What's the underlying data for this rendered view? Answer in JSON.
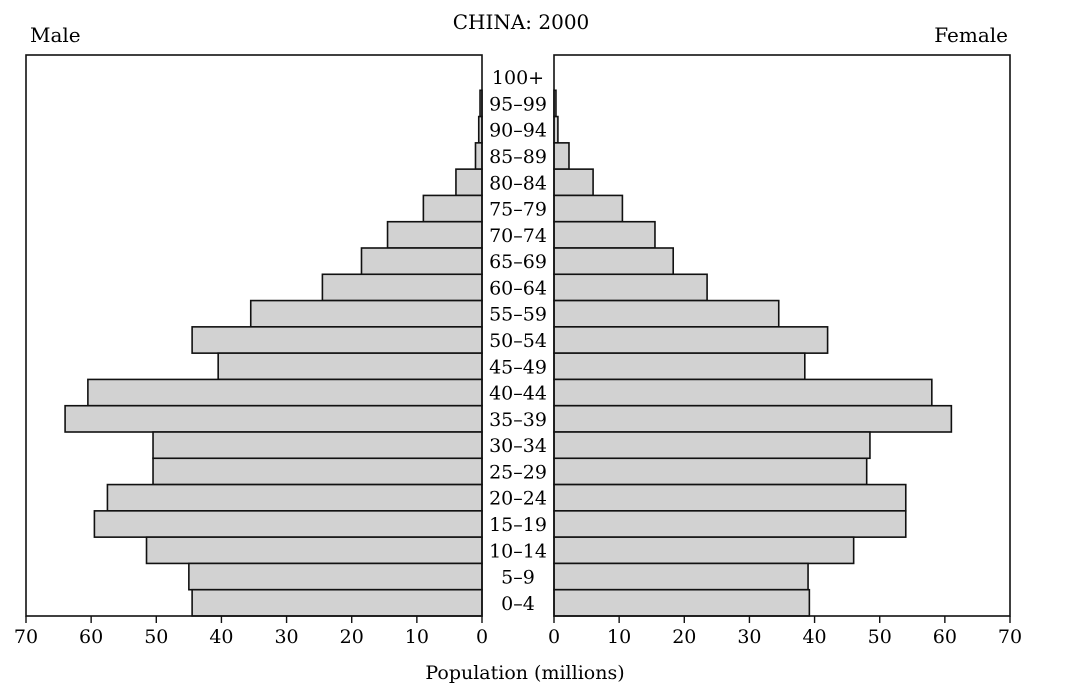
{
  "chart_data": {
    "type": "bar",
    "title": "CHINA: 2000",
    "left_label": "Male",
    "right_label": "Female",
    "xlabel": "Population (millions)",
    "xlim": [
      0,
      70
    ],
    "x_ticks": [
      "70",
      "60",
      "50",
      "40",
      "30",
      "20",
      "10",
      "0",
      "0",
      "10",
      "20",
      "30",
      "40",
      "50",
      "60",
      "70"
    ],
    "categories": [
      "100+",
      "95–99",
      "90–94",
      "85–89",
      "80–84",
      "75–79",
      "70–74",
      "65–69",
      "60–64",
      "55–59",
      "50–54",
      "45–49",
      "40–44",
      "35–39",
      "30–34",
      "25–29",
      "20–24",
      "15–19",
      "10–14",
      "5–9",
      "0–4"
    ],
    "series": [
      {
        "name": "Male",
        "values": [
          0,
          0.3,
          0.5,
          1.0,
          4.0,
          9.0,
          14.5,
          18.5,
          24.5,
          35.5,
          44.5,
          40.5,
          60.5,
          64.0,
          50.5,
          50.5,
          57.5,
          59.5,
          51.5,
          45.0,
          44.5
        ]
      },
      {
        "name": "Female",
        "values": [
          0,
          0.3,
          0.6,
          2.3,
          6.0,
          10.5,
          15.5,
          18.3,
          23.5,
          34.5,
          42.0,
          38.5,
          58.0,
          61.0,
          48.5,
          48.0,
          54.0,
          54.0,
          46.0,
          39.0,
          39.2
        ]
      }
    ]
  }
}
